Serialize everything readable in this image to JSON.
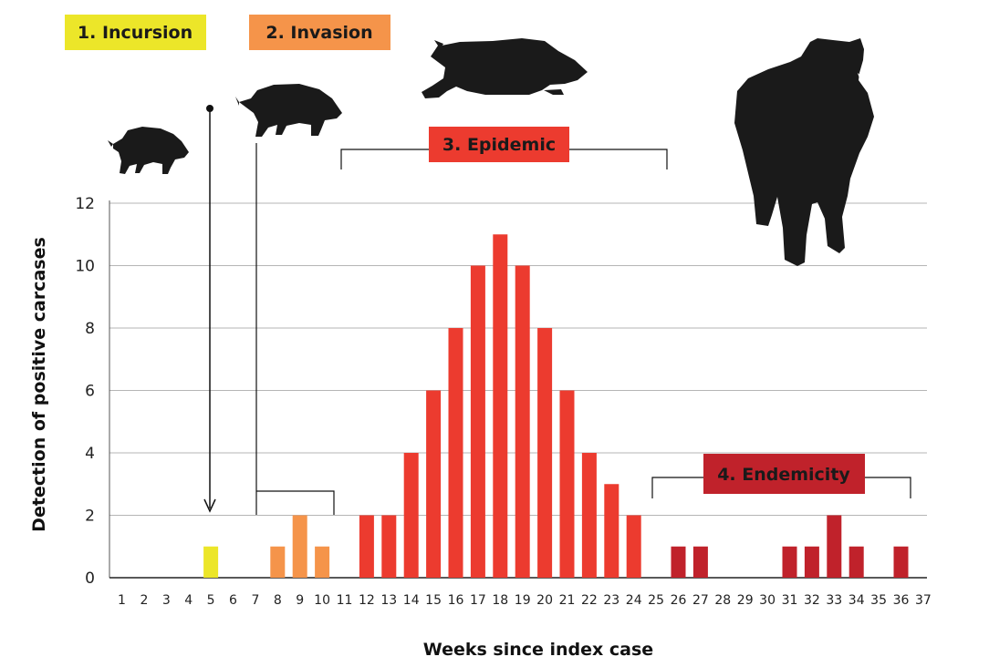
{
  "chart_data": {
    "type": "bar",
    "title": "",
    "xlabel": "Weeks since index case",
    "ylabel": "Detection of positive carcases",
    "ylim": [
      0,
      12
    ],
    "yticks": [
      0,
      2,
      4,
      6,
      8,
      10,
      12
    ],
    "grid": "horizontal",
    "categories": [
      "1",
      "2",
      "3",
      "4",
      "5",
      "6",
      "7",
      "8",
      "9",
      "10",
      "11",
      "12",
      "13",
      "14",
      "15",
      "16",
      "17",
      "18",
      "19",
      "20",
      "21",
      "22",
      "23",
      "24",
      "25",
      "26",
      "27",
      "28",
      "29",
      "30",
      "31",
      "32",
      "33",
      "34",
      "35",
      "36",
      "37"
    ],
    "values": [
      0,
      0,
      0,
      0,
      1,
      0,
      0,
      1,
      2,
      1,
      0,
      2,
      2,
      4,
      6,
      8,
      10,
      11,
      10,
      8,
      6,
      4,
      3,
      2,
      0,
      1,
      1,
      0,
      0,
      0,
      1,
      1,
      2,
      1,
      0,
      1,
      0
    ],
    "phases": [
      {
        "label": "1. Incursion",
        "color": "#ece629",
        "weeks": [
          5
        ]
      },
      {
        "label": "2. Invasion",
        "color": "#f5944a",
        "weeks": [
          8,
          9,
          10
        ]
      },
      {
        "label": "3. Epidemic",
        "color": "#ec3b2f",
        "weeks": [
          12,
          13,
          14,
          15,
          16,
          17,
          18,
          19,
          20,
          21,
          22,
          23,
          24
        ]
      },
      {
        "label": "4. Endemicity",
        "color": "#c0222b",
        "weeks": [
          26,
          27,
          31,
          32,
          33,
          34,
          36
        ]
      }
    ],
    "silhouette_color": "#1a1a1a",
    "icons": [
      "wild-boar-small-icon",
      "wild-boar-medium-icon",
      "wild-boar-running-icon",
      "wild-boar-large-icon"
    ]
  }
}
